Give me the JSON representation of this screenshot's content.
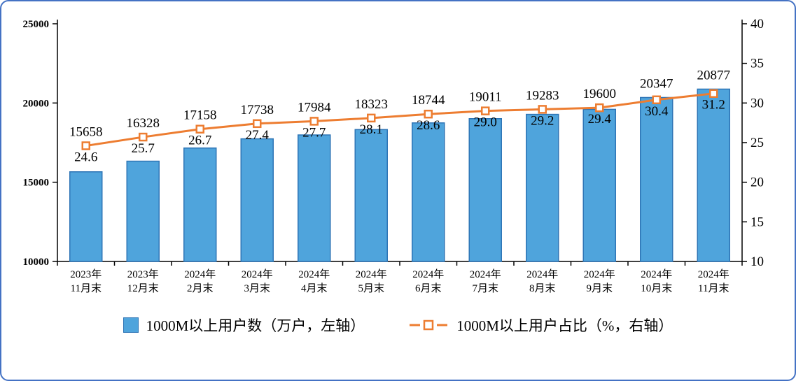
{
  "frame": {
    "border_color": "#4472C4",
    "background": "#FFFFFF"
  },
  "chart_data": {
    "type": "bar",
    "subtype": "combo-bar-line",
    "title": "",
    "grid": false,
    "legend_position": "bottom",
    "categories": [
      [
        "2023年",
        "11月末"
      ],
      [
        "2023年",
        "12月末"
      ],
      [
        "2024年",
        "2月末"
      ],
      [
        "2024年",
        "3月末"
      ],
      [
        "2024年",
        "4月末"
      ],
      [
        "2024年",
        "5月末"
      ],
      [
        "2024年",
        "6月末"
      ],
      [
        "2024年",
        "7月末"
      ],
      [
        "2024年",
        "8月末"
      ],
      [
        "2024年",
        "9月末"
      ],
      [
        "2024年",
        "10月末"
      ],
      [
        "2024年",
        "11月末"
      ]
    ],
    "series": [
      {
        "name": "1000M以上用户数（万户，左轴）",
        "type": "bar",
        "axis": "left",
        "color": "#4FA4DC",
        "border_color": "#2E75B6",
        "values": [
          15658,
          16328,
          17158,
          17738,
          17984,
          18323,
          18744,
          19011,
          19283,
          19600,
          20347,
          20877
        ],
        "value_labels": [
          "15658",
          "16328",
          "17158",
          "17738",
          "17984",
          "18323",
          "18744",
          "19011",
          "19283",
          "19600",
          "20347",
          "20877"
        ]
      },
      {
        "name": "1000M以上用户占比（%，右轴）",
        "type": "line",
        "axis": "right",
        "color": "#ED7D31",
        "marker": "hollow-square",
        "values": [
          24.6,
          25.7,
          26.7,
          27.4,
          27.7,
          28.1,
          28.6,
          29.0,
          29.2,
          29.4,
          30.4,
          31.2
        ],
        "value_labels": [
          "24.6",
          "25.7",
          "26.7",
          "27.4",
          "27.7",
          "28.1",
          "28.6",
          "29.0",
          "29.2",
          "29.4",
          "30.4",
          "31.2"
        ]
      }
    ],
    "left_axis": {
      "min": 10000,
      "max": 25000,
      "step": 5000,
      "ticks": [
        10000,
        15000,
        20000,
        25000
      ],
      "tick_labels": [
        "10000",
        "15000",
        "20000",
        "25000"
      ]
    },
    "right_axis": {
      "min": 10,
      "max": 40,
      "step": 5,
      "ticks": [
        10,
        15,
        20,
        25,
        30,
        35,
        40
      ],
      "tick_labels": [
        "10",
        "15",
        "20",
        "25",
        "30",
        "35",
        "40"
      ]
    }
  },
  "legend": {
    "bar_label": "1000M以上用户数（万户，左轴）",
    "line_label": "1000M以上用户占比（%，右轴）"
  }
}
